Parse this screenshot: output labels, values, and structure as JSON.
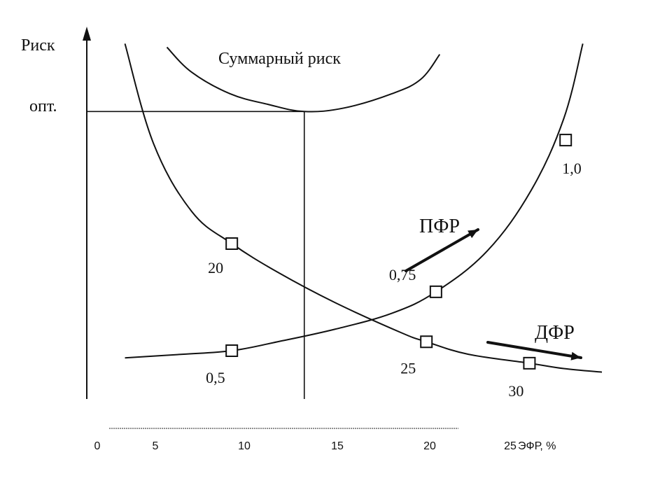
{
  "chart_data": {
    "type": "line",
    "ylabel": "Риск",
    "y_opt_label": "опт.",
    "xlabel": "ЭФР, %",
    "x_ticks": [
      {
        "value": 0,
        "label": "0"
      },
      {
        "value": 5,
        "label": "5"
      },
      {
        "value": 10,
        "label": "10"
      },
      {
        "value": 15,
        "label": "15"
      },
      {
        "value": 20,
        "label": "20"
      },
      {
        "value": 25,
        "label": "25"
      }
    ],
    "series": [
      {
        "name": "Суммарный риск",
        "points": [
          [
            4.2,
            95
          ],
          [
            5.5,
            88
          ],
          [
            7.5,
            82
          ],
          [
            9.5,
            79
          ],
          [
            11.4,
            77
          ],
          [
            13.5,
            78
          ],
          [
            16,
            82
          ],
          [
            17.5,
            86
          ],
          [
            18.5,
            93
          ]
        ]
      },
      {
        "name": "ПФР",
        "points": [
          [
            2,
            8
          ],
          [
            5,
            9
          ],
          [
            7.6,
            10
          ],
          [
            10,
            12.5
          ],
          [
            13,
            16
          ],
          [
            16,
            20.5
          ],
          [
            18.3,
            26.5
          ],
          [
            21,
            38
          ],
          [
            23.3,
            55
          ],
          [
            25,
            75
          ],
          [
            26,
            96
          ]
        ]
      },
      {
        "name": "ДФР",
        "points": [
          [
            2,
            96
          ],
          [
            3.5,
            68
          ],
          [
            5.5,
            49
          ],
          [
            7.6,
            40
          ],
          [
            10,
            32
          ],
          [
            13,
            23.5
          ],
          [
            16.5,
            15
          ],
          [
            17.8,
            12.5
          ],
          [
            20,
            9
          ],
          [
            23.2,
            6.5
          ],
          [
            25,
            5
          ],
          [
            27,
            4
          ]
        ]
      }
    ],
    "markers": [
      {
        "series": "ДФР",
        "x": 7.6,
        "y": 40,
        "label": "20"
      },
      {
        "series": "ДФР",
        "x": 17.8,
        "y": 12.5,
        "label": "25"
      },
      {
        "series": "ДФР",
        "x": 23.2,
        "y": 6.5,
        "label": "30"
      },
      {
        "series": "ПФР",
        "x": 7.6,
        "y": 10,
        "label": "0,5"
      },
      {
        "series": "ПФР",
        "x": 18.3,
        "y": 26.5,
        "label": "0,75"
      },
      {
        "series": "ПФР",
        "x": 25.1,
        "y": 69,
        "label": "1,0"
      }
    ],
    "optimum": {
      "x": 11.4,
      "y": 77
    },
    "xlim": [
      0,
      27
    ],
    "ylim": [
      0,
      100
    ],
    "grid": false
  }
}
